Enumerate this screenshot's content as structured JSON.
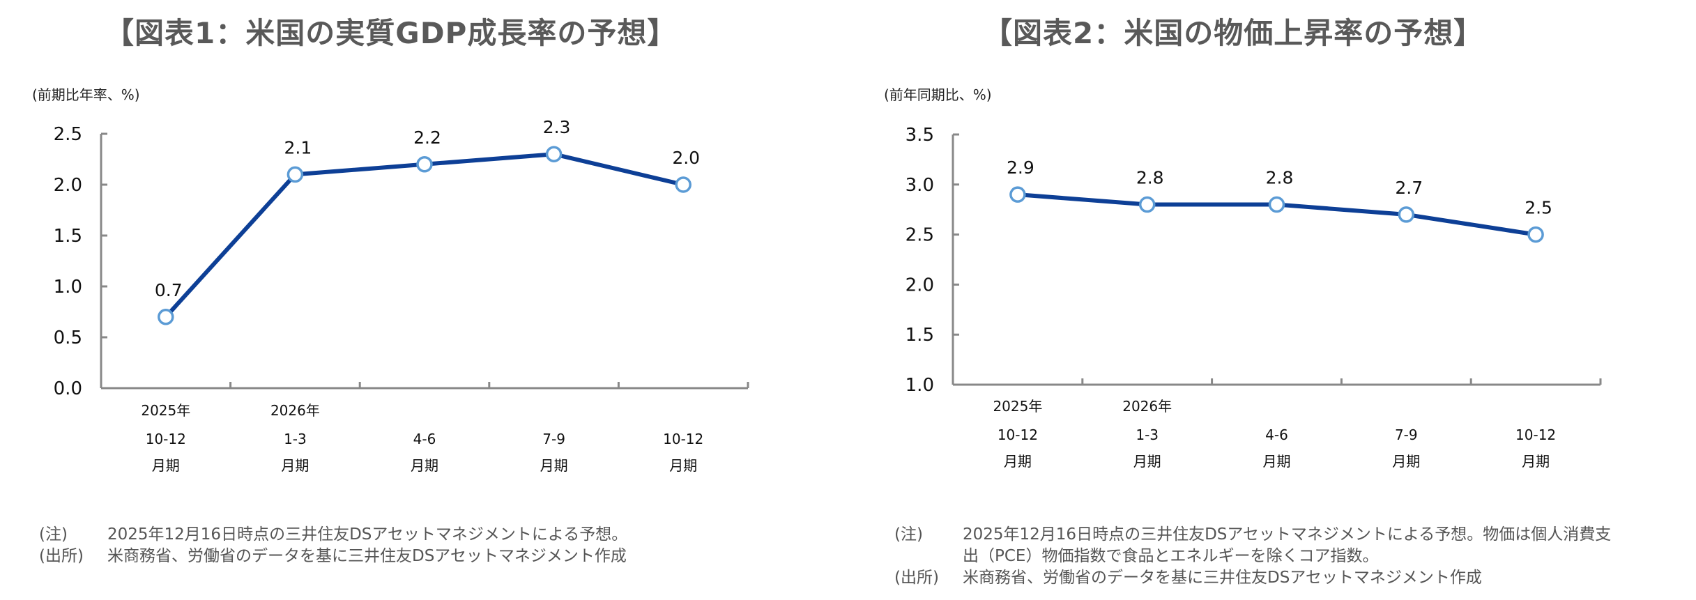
{
  "chart_data": [
    {
      "type": "line",
      "title": "【図表1：米国の実質GDP成長率の予想】",
      "ylabel": "(前期比年率、%)",
      "xlabel": "",
      "categories": [
        {
          "year": "2025年",
          "period": "10-12",
          "suffix": "月期"
        },
        {
          "year": "2026年",
          "period": "1-3",
          "suffix": "月期"
        },
        {
          "year": "",
          "period": "4-6",
          "suffix": "月期"
        },
        {
          "year": "",
          "period": "7-9",
          "suffix": "月期"
        },
        {
          "year": "",
          "period": "10-12",
          "suffix": "月期"
        }
      ],
      "series": [
        {
          "name": "実質GDP成長率",
          "values": [
            0.7,
            2.1,
            2.2,
            2.3,
            2.0
          ]
        }
      ],
      "data_labels": [
        "0.7",
        "2.1",
        "2.2",
        "2.3",
        "2.0"
      ],
      "ylim": [
        0.0,
        2.5
      ],
      "yticks": [
        "0.0",
        "0.5",
        "1.0",
        "1.5",
        "2.0",
        "2.5"
      ],
      "grid": false,
      "legend": "none",
      "colors": {
        "line": "#0D3F96",
        "marker_edge": "#5B9BD5",
        "marker_fill": "#FFFFFF",
        "axis": "#888888"
      }
    },
    {
      "type": "line",
      "title": "【図表2：米国の物価上昇率の予想】",
      "ylabel": "(前年同期比、%)",
      "xlabel": "",
      "categories": [
        {
          "year": "2025年",
          "period": "10-12",
          "suffix": "月期"
        },
        {
          "year": "2026年",
          "period": "1-3",
          "suffix": "月期"
        },
        {
          "year": "",
          "period": "4-6",
          "suffix": "月期"
        },
        {
          "year": "",
          "period": "7-9",
          "suffix": "月期"
        },
        {
          "year": "",
          "period": "10-12",
          "suffix": "月期"
        }
      ],
      "series": [
        {
          "name": "コアPCE物価指数",
          "values": [
            2.9,
            2.8,
            2.8,
            2.7,
            2.5
          ]
        }
      ],
      "data_labels": [
        "2.9",
        "2.8",
        "2.8",
        "2.7",
        "2.5"
      ],
      "ylim": [
        1.0,
        3.5
      ],
      "yticks": [
        "1.0",
        "1.5",
        "2.0",
        "2.5",
        "3.0",
        "3.5"
      ],
      "grid": false,
      "legend": "none",
      "colors": {
        "line": "#0D3F96",
        "marker_edge": "#5B9BD5",
        "marker_fill": "#FFFFFF",
        "axis": "#888888"
      }
    }
  ],
  "notes": [
    {
      "note_key": "(注)",
      "note_lines": [
        "2025年12月16日時点の三井住友DSアセットマネジメントによる予想。"
      ],
      "source_key": "(出所)",
      "source_text": "米商務省、労働省のデータを基に三井住友DSアセットマネジメント作成"
    },
    {
      "note_key": "(注)",
      "note_lines": [
        "2025年12月16日時点の三井住友DSアセットマネジメントによる予想。物価は個人消費支",
        "出（PCE）物価指数で食品とエネルギーを除くコア指数。"
      ],
      "source_key": "(出所)",
      "source_text": "米商務省、労働省のデータを基に三井住友DSアセットマネジメント作成"
    }
  ]
}
